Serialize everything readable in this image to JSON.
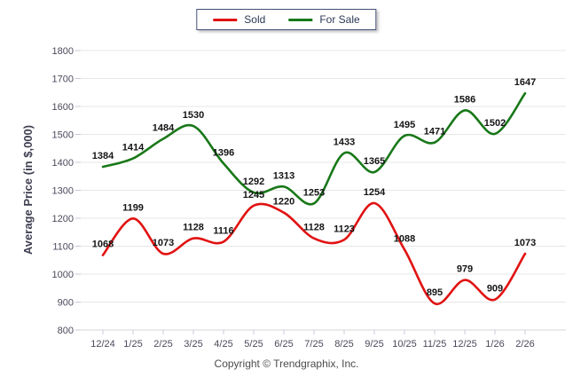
{
  "chart_data": {
    "type": "line",
    "title": "",
    "categories": [
      "12/24",
      "1/25",
      "2/25",
      "3/25",
      "4/25",
      "5/25",
      "6/25",
      "7/25",
      "8/25",
      "9/25",
      "10/25",
      "11/25",
      "12/25",
      "1/26",
      "2/26"
    ],
    "series": [
      {
        "name": "Sold",
        "color": "#e11212",
        "values": [
          1068,
          1199,
          1073,
          1128,
          1116,
          1245,
          1220,
          1128,
          1123,
          1254,
          1088,
          895,
          979,
          909,
          1073
        ]
      },
      {
        "name": "For Sale",
        "color": "#187818",
        "values": [
          1384,
          1414,
          1484,
          1530,
          1396,
          1292,
          1313,
          1253,
          1433,
          1365,
          1495,
          1471,
          1586,
          1502,
          1647
        ]
      }
    ],
    "xlabel": "",
    "ylabel": "Average Price (in $,000)",
    "ylim": [
      800,
      1800
    ],
    "yticks": [
      800,
      900,
      1000,
      1100,
      1200,
      1300,
      1400,
      1500,
      1600,
      1700,
      1800
    ],
    "grid": "horizontal",
    "legend_position": "top-center",
    "point_labels": true
  },
  "footer": {
    "copyright": "Copyright © Trendgraphix, Inc."
  }
}
